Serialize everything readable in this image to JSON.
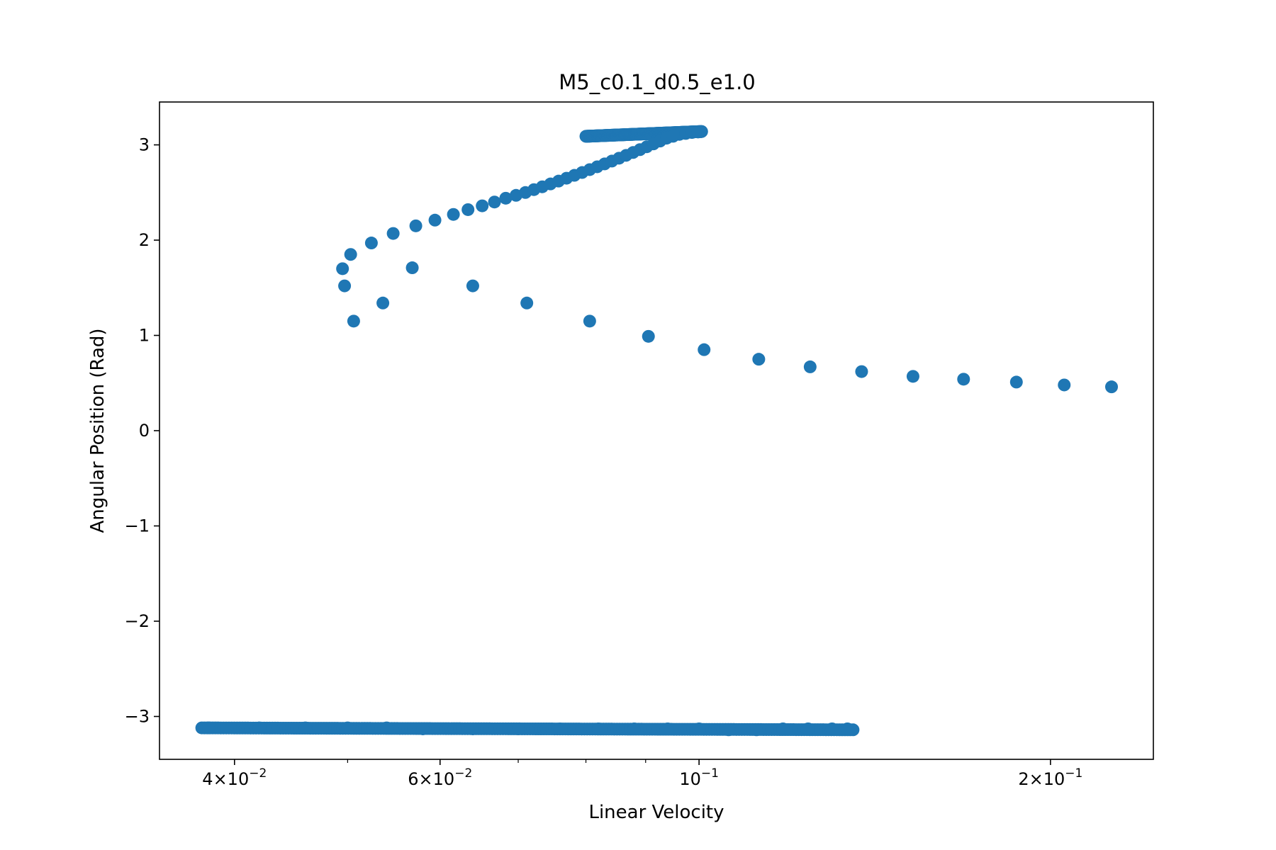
{
  "chart_data": {
    "type": "scatter",
    "title": "M5_c0.1_d0.5_e1.0",
    "xlabel": "Linear Velocity",
    "ylabel": "Angular Position (Rad)",
    "xscale": "log",
    "xlim": [
      0.0345,
      0.245
    ],
    "ylim": [
      -3.45,
      3.45
    ],
    "grid": false,
    "marker_color": "#1f77b4",
    "x_ticks": [
      {
        "value": 0.04,
        "mantissa": "4",
        "times": "×",
        "base": "10",
        "exp": "−2"
      },
      {
        "value": 0.06,
        "mantissa": "6",
        "times": "×",
        "base": "10",
        "exp": "−2"
      },
      {
        "value": 0.1,
        "mantissa": "",
        "times": "",
        "base": "10",
        "exp": "−1"
      },
      {
        "value": 0.2,
        "mantissa": "2",
        "times": "×",
        "base": "10",
        "exp": "−1"
      }
    ],
    "x_minor_ticks": [
      0.05,
      0.07,
      0.08,
      0.09
    ],
    "y_ticks": [
      {
        "value": -3,
        "label": "−3"
      },
      {
        "value": -2,
        "label": "−2"
      },
      {
        "value": -1,
        "label": "−1"
      },
      {
        "value": 0,
        "label": "0"
      },
      {
        "value": 1,
        "label": "1"
      },
      {
        "value": 2,
        "label": "2"
      },
      {
        "value": 3,
        "label": "3"
      }
    ],
    "points": [
      [
        0.2256,
        0.46
      ],
      [
        0.2055,
        0.48
      ],
      [
        0.187,
        0.51
      ],
      [
        0.1685,
        0.54
      ],
      [
        0.1525,
        0.57
      ],
      [
        0.1378,
        0.62
      ],
      [
        0.1245,
        0.67
      ],
      [
        0.1125,
        0.75
      ],
      [
        0.101,
        0.85
      ],
      [
        0.0905,
        0.99
      ],
      [
        0.0806,
        1.15
      ],
      [
        0.0712,
        1.34
      ],
      [
        0.064,
        1.52
      ],
      [
        0.0568,
        1.71
      ],
      [
        0.0536,
        1.34
      ],
      [
        0.0506,
        1.15
      ],
      [
        0.0497,
        1.52
      ],
      [
        0.0495,
        1.7
      ],
      [
        0.0503,
        1.85
      ],
      [
        0.0524,
        1.97
      ],
      [
        0.0547,
        2.07
      ],
      [
        0.0572,
        2.15
      ],
      [
        0.0594,
        2.21
      ],
      [
        0.0616,
        2.27
      ],
      [
        0.0634,
        2.32
      ],
      [
        0.0652,
        2.36
      ],
      [
        0.0668,
        2.4
      ],
      [
        0.0683,
        2.44
      ],
      [
        0.0697,
        2.47
      ],
      [
        0.071,
        2.5
      ],
      [
        0.0722,
        2.53
      ],
      [
        0.0734,
        2.56
      ],
      [
        0.0746,
        2.59
      ],
      [
        0.0758,
        2.62
      ],
      [
        0.077,
        2.65
      ],
      [
        0.0782,
        2.68
      ],
      [
        0.0794,
        2.71
      ],
      [
        0.0806,
        2.74
      ],
      [
        0.0818,
        2.77
      ],
      [
        0.083,
        2.8
      ],
      [
        0.0842,
        2.83
      ],
      [
        0.0854,
        2.86
      ],
      [
        0.0866,
        2.89
      ],
      [
        0.0878,
        2.92
      ],
      [
        0.089,
        2.95
      ],
      [
        0.0902,
        2.98
      ],
      [
        0.0914,
        3.01
      ],
      [
        0.0926,
        3.04
      ],
      [
        0.0938,
        3.07
      ],
      [
        0.095,
        3.09
      ],
      [
        0.0962,
        3.11
      ],
      [
        0.0974,
        3.12
      ],
      [
        0.0986,
        3.13
      ],
      [
        0.0998,
        3.135
      ],
      [
        0.1005,
        3.14
      ],
      [
        0.038,
        -3.12
      ],
      [
        0.042,
        -3.12
      ],
      [
        0.046,
        -3.12
      ],
      [
        0.05,
        -3.12
      ],
      [
        0.054,
        -3.12
      ],
      [
        0.058,
        -3.13
      ],
      [
        0.064,
        -3.13
      ],
      [
        0.07,
        -3.13
      ],
      [
        0.076,
        -3.13
      ],
      [
        0.082,
        -3.13
      ],
      [
        0.088,
        -3.13
      ],
      [
        0.094,
        -3.13
      ],
      [
        0.1,
        -3.13
      ],
      [
        0.106,
        -3.14
      ],
      [
        0.112,
        -3.14
      ],
      [
        0.118,
        -3.13
      ],
      [
        0.124,
        -3.13
      ],
      [
        0.13,
        -3.13
      ],
      [
        0.134,
        -3.13
      ]
    ],
    "bands": [
      {
        "x_from": 0.08,
        "x_to": 0.1005,
        "y_from": 3.09,
        "y_to": 3.14
      },
      {
        "x_from": 0.0375,
        "x_to": 0.1355,
        "y_from": -3.12,
        "y_to": -3.14
      }
    ]
  }
}
